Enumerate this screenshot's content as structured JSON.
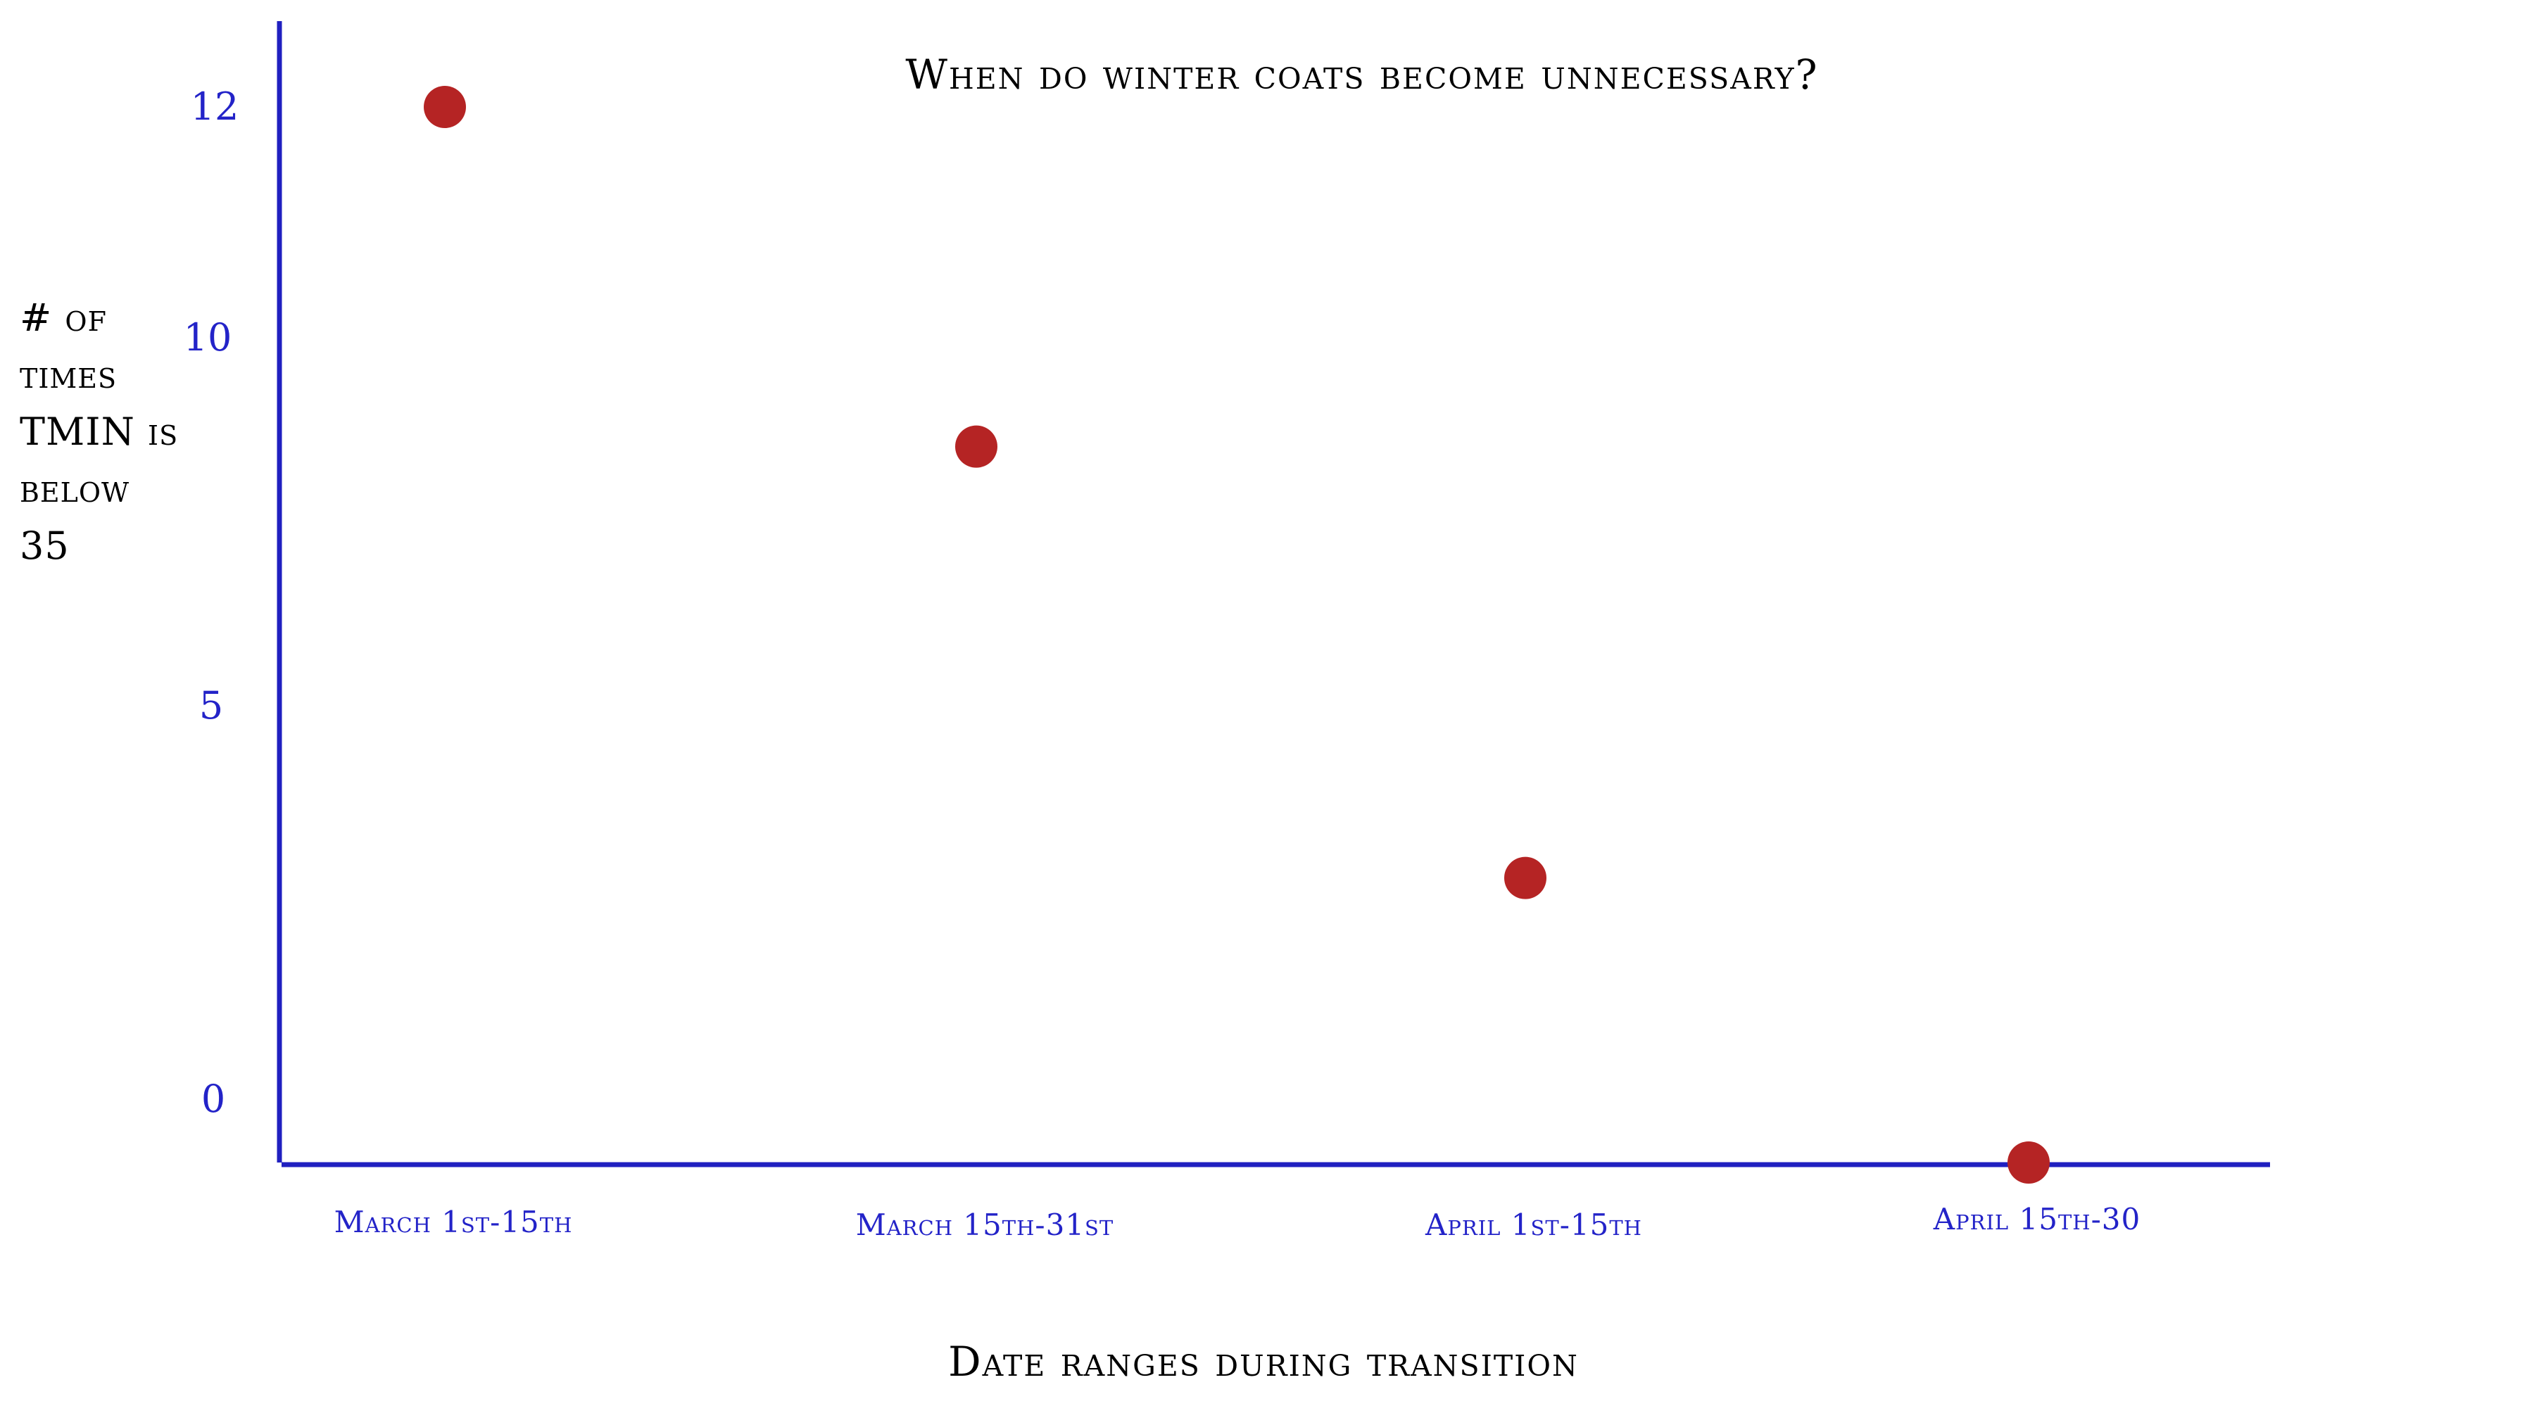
{
  "chart_data": {
    "type": "scatter",
    "title": "When do winter coats become unnecessary?",
    "xlabel": "Date ranges during transition",
    "ylabel": "# of times TMIN is below 35",
    "categories": [
      "March 1st-15th",
      "March 15th-31st",
      "April 1st-15th",
      "April 15th-30"
    ],
    "values": [
      12,
      8.3,
      3.6,
      0.5
    ],
    "ylim": [
      0.5,
      12
    ],
    "yticks": [
      "12",
      "10",
      "5",
      "0"
    ],
    "grid": false,
    "colors": {
      "point": "#b52424",
      "axis": "#2020c0",
      "tick_text": "#2323c8",
      "label_text": "#000000"
    }
  }
}
